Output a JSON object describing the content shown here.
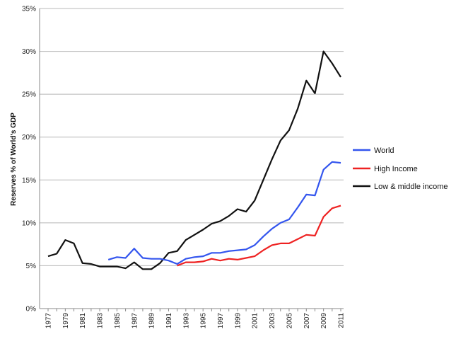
{
  "chart_data": {
    "type": "line",
    "title": "",
    "xlabel": "",
    "ylabel": "Reserves % of World's GDP",
    "ylim": [
      0,
      35
    ],
    "xlim": [
      1977,
      2011
    ],
    "yticks": [
      0,
      5,
      10,
      15,
      20,
      25,
      30,
      35
    ],
    "ytick_labels": [
      "0%",
      "5%",
      "10%",
      "15%",
      "20%",
      "25%",
      "30%",
      "35%"
    ],
    "xticks": [
      1977,
      1979,
      1981,
      1983,
      1985,
      1987,
      1989,
      1991,
      1993,
      1995,
      1997,
      1999,
      2001,
      2003,
      2005,
      2007,
      2009,
      2011
    ],
    "xtick_labels": [
      "1977",
      "1979",
      "1981",
      "1983",
      "1985",
      "1987",
      "1989",
      "1991",
      "1993",
      "1995",
      "1997",
      "1999",
      "2001",
      "2003",
      "2005",
      "2007",
      "2009",
      "2011"
    ],
    "grid": "horizontal",
    "legend_position": "right",
    "series": [
      {
        "name": "World",
        "color": "#3355ee",
        "x": [
          1984,
          1985,
          1986,
          1987,
          1988,
          1989,
          1990,
          1991,
          1992,
          1993,
          1994,
          1995,
          1996,
          1997,
          1998,
          1999,
          2000,
          2001,
          2002,
          2003,
          2004,
          2005,
          2006,
          2007,
          2008,
          2009,
          2010,
          2011
        ],
        "y": [
          5.7,
          6.0,
          5.9,
          7.0,
          5.9,
          5.8,
          5.8,
          5.6,
          5.2,
          5.8,
          6.0,
          6.1,
          6.5,
          6.5,
          6.7,
          6.8,
          6.9,
          7.4,
          8.4,
          9.3,
          10.0,
          10.4,
          11.8,
          13.3,
          13.2,
          16.2,
          17.1,
          17.0
        ]
      },
      {
        "name": "High Income",
        "color": "#ee2222",
        "x": [
          1992,
          1993,
          1994,
          1995,
          1996,
          1997,
          1998,
          1999,
          2000,
          2001,
          2002,
          2003,
          2004,
          2005,
          2006,
          2007,
          2008,
          2009,
          2010,
          2011
        ],
        "y": [
          5.0,
          5.4,
          5.4,
          5.5,
          5.8,
          5.6,
          5.8,
          5.7,
          5.9,
          6.1,
          6.8,
          7.4,
          7.6,
          7.6,
          8.1,
          8.6,
          8.5,
          10.7,
          11.7,
          12.0
        ]
      },
      {
        "name": "Low & middle income",
        "color": "#111111",
        "x": [
          1977,
          1978,
          1979,
          1980,
          1981,
          1982,
          1983,
          1984,
          1985,
          1986,
          1987,
          1988,
          1989,
          1990,
          1991,
          1992,
          1993,
          1994,
          1995,
          1996,
          1997,
          1998,
          1999,
          2000,
          2001,
          2002,
          2003,
          2004,
          2005,
          2006,
          2007,
          2008,
          2009,
          2010,
          2011
        ],
        "y": [
          6.1,
          6.4,
          8.0,
          7.6,
          5.3,
          5.2,
          4.9,
          4.9,
          4.9,
          4.7,
          5.4,
          4.6,
          4.6,
          5.3,
          6.5,
          6.7,
          8.0,
          8.6,
          9.2,
          9.9,
          10.2,
          10.8,
          11.6,
          11.3,
          12.6,
          15.0,
          17.4,
          19.6,
          20.8,
          23.3,
          26.6,
          25.1,
          30.0,
          28.6,
          27.0
        ]
      }
    ]
  }
}
